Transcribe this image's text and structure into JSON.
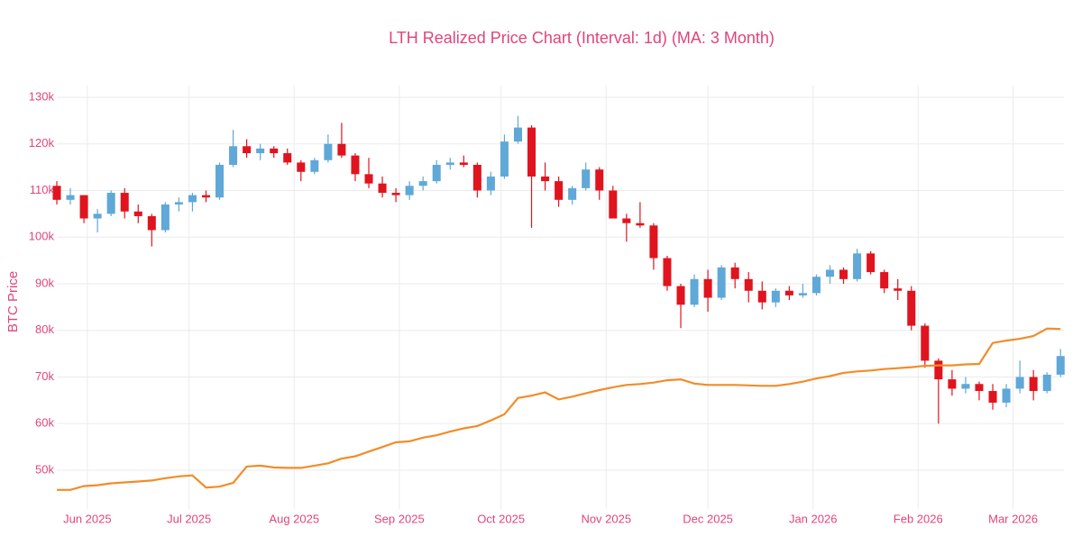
{
  "chart_data": {
    "type": "candlestick",
    "title": "LTH Realized Price Chart (Interval: 1d) (MA: 3 Month)",
    "y_label": "BTC Price",
    "up_color": "#5fa8d8",
    "down_color": "#e0141e",
    "grid": true,
    "xlim": [
      "2025-05-23",
      "2026-03-16"
    ],
    "xticks": [
      {
        "value": "2025-06-01",
        "label": "Jun 2025"
      },
      {
        "value": "2025-07-01",
        "label": "Jul 2025"
      },
      {
        "value": "2025-08-01",
        "label": "Aug 2025"
      },
      {
        "value": "2025-09-01",
        "label": "Sep 2025"
      },
      {
        "value": "2025-10-01",
        "label": "Oct 2025"
      },
      {
        "value": "2025-11-01",
        "label": "Nov 2025"
      },
      {
        "value": "2025-12-01",
        "label": "Dec 2025"
      },
      {
        "value": "2026-01-01",
        "label": "Jan 2026"
      },
      {
        "value": "2026-02-01",
        "label": "Feb 2026"
      },
      {
        "value": "2026-03-01",
        "label": "Mar 2026"
      }
    ],
    "ylim": [
      41700,
      132500
    ],
    "yticks": [
      {
        "value": 50000,
        "label": "50k"
      },
      {
        "value": 60000,
        "label": "60k"
      },
      {
        "value": 70000,
        "label": "70k"
      },
      {
        "value": 80000,
        "label": "80k"
      },
      {
        "value": 90000,
        "label": "90k"
      },
      {
        "value": 100000,
        "label": "100k"
      },
      {
        "value": 110000,
        "label": "110k"
      },
      {
        "value": 120000,
        "label": "120k"
      },
      {
        "value": 130000,
        "label": "130k"
      }
    ],
    "x": [
      "2025-05-23",
      "2025-05-27",
      "2025-05-31",
      "2025-06-04",
      "2025-06-08",
      "2025-06-12",
      "2025-06-16",
      "2025-06-20",
      "2025-06-24",
      "2025-06-28",
      "2025-07-02",
      "2025-07-06",
      "2025-07-10",
      "2025-07-14",
      "2025-07-18",
      "2025-07-22",
      "2025-07-26",
      "2025-07-30",
      "2025-08-03",
      "2025-08-07",
      "2025-08-11",
      "2025-08-15",
      "2025-08-19",
      "2025-08-23",
      "2025-08-27",
      "2025-08-31",
      "2025-09-04",
      "2025-09-08",
      "2025-09-12",
      "2025-09-16",
      "2025-09-20",
      "2025-09-24",
      "2025-09-28",
      "2025-10-02",
      "2025-10-06",
      "2025-10-10",
      "2025-10-14",
      "2025-10-18",
      "2025-10-22",
      "2025-10-26",
      "2025-10-30",
      "2025-11-03",
      "2025-11-07",
      "2025-11-11",
      "2025-11-15",
      "2025-11-19",
      "2025-11-23",
      "2025-11-27",
      "2025-12-01",
      "2025-12-05",
      "2025-12-09",
      "2025-12-13",
      "2025-12-17",
      "2025-12-21",
      "2025-12-25",
      "2025-12-29",
      "2026-01-02",
      "2026-01-06",
      "2026-01-10",
      "2026-01-14",
      "2026-01-18",
      "2026-01-22",
      "2026-01-26",
      "2026-01-30",
      "2026-02-03",
      "2026-02-07",
      "2026-02-11",
      "2026-02-15",
      "2026-02-19",
      "2026-02-23",
      "2026-02-27",
      "2026-03-03",
      "2026-03-07",
      "2026-03-11",
      "2026-03-15"
    ],
    "open": [
      111000,
      108000,
      109000,
      104000,
      105000,
      109500,
      105500,
      104500,
      101500,
      107000,
      107500,
      109000,
      108500,
      115500,
      119500,
      118000,
      119000,
      118000,
      116000,
      114000,
      116500,
      120000,
      117500,
      113500,
      111500,
      109500,
      109000,
      111000,
      112000,
      115500,
      116000,
      115500,
      110000,
      113000,
      120500,
      123500,
      113000,
      112000,
      108000,
      110500,
      114500,
      110000,
      104000,
      103000,
      102500,
      95500,
      89500,
      85500,
      91000,
      87000,
      93500,
      91000,
      88500,
      86000,
      88500,
      87500,
      88000,
      91500,
      93000,
      91000,
      96500,
      92500,
      89000,
      88500,
      81000,
      73500,
      69500,
      67500,
      68500,
      67000,
      64500,
      67500,
      70000,
      67000,
      70500
    ],
    "high": [
      112000,
      110500,
      109000,
      106000,
      110000,
      110500,
      107000,
      105000,
      107500,
      108500,
      109500,
      110000,
      116000,
      123000,
      121000,
      120000,
      119500,
      119000,
      116500,
      117000,
      122000,
      124500,
      118000,
      117000,
      113000,
      110500,
      112000,
      113000,
      116500,
      117000,
      117500,
      116000,
      114000,
      122000,
      126000,
      124000,
      116000,
      113000,
      111000,
      116000,
      115000,
      111000,
      105000,
      107500,
      103000,
      96000,
      90000,
      92000,
      93000,
      94000,
      94500,
      92500,
      90500,
      89000,
      89500,
      90000,
      92000,
      94000,
      93500,
      97500,
      97000,
      93000,
      91000,
      89500,
      81500,
      74000,
      71500,
      70000,
      69000,
      68500,
      68500,
      73500,
      71500,
      71000,
      76000
    ],
    "low": [
      107000,
      107000,
      103000,
      101000,
      104500,
      104000,
      103000,
      98000,
      101000,
      105500,
      105500,
      107500,
      108000,
      115000,
      117000,
      116500,
      117000,
      115500,
      112000,
      113500,
      116000,
      117000,
      112000,
      110500,
      108500,
      107500,
      108000,
      110000,
      111500,
      114500,
      115000,
      108500,
      109000,
      112500,
      120000,
      102000,
      110000,
      106500,
      107000,
      110000,
      108000,
      104000,
      99000,
      102000,
      93000,
      88500,
      80500,
      85000,
      84000,
      86500,
      89000,
      86000,
      84500,
      85000,
      86500,
      87000,
      87500,
      90000,
      90000,
      90500,
      92000,
      88000,
      86500,
      80000,
      72000,
      60000,
      66000,
      66500,
      65000,
      63000,
      63500,
      66500,
      65000,
      66500,
      70000
    ],
    "close": [
      108000,
      109000,
      104000,
      105000,
      109500,
      105500,
      104500,
      101500,
      107000,
      107500,
      109000,
      108500,
      115500,
      119500,
      118000,
      119000,
      118000,
      116000,
      114000,
      116500,
      120000,
      117500,
      113500,
      111500,
      109500,
      109000,
      111000,
      112000,
      115500,
      116000,
      115500,
      110000,
      113000,
      120500,
      123500,
      113000,
      112000,
      108000,
      110500,
      114500,
      110000,
      104000,
      103000,
      102500,
      95500,
      89500,
      85500,
      91000,
      87000,
      93500,
      91000,
      88500,
      86000,
      88500,
      87500,
      88000,
      91500,
      93000,
      91000,
      96500,
      92500,
      89000,
      88500,
      81000,
      73500,
      69500,
      67500,
      68500,
      67000,
      64500,
      67500,
      70000,
      67000,
      70500,
      74500
    ],
    "line": {
      "color": "#f28c28",
      "values": [
        45800,
        45800,
        46600,
        46800,
        47200,
        47400,
        47600,
        47800,
        48300,
        48700,
        48900,
        46300,
        46500,
        47300,
        50800,
        51000,
        50600,
        50500,
        50500,
        51000,
        51500,
        52500,
        53000,
        54000,
        55000,
        56000,
        56200,
        57000,
        57500,
        58300,
        59000,
        59500,
        60700,
        62000,
        65500,
        66000,
        66700,
        65200,
        65800,
        66500,
        67200,
        67800,
        68300,
        68500,
        68800,
        69300,
        69500,
        68600,
        68300,
        68300,
        68300,
        68200,
        68100,
        68100,
        68500,
        69000,
        69700,
        70200,
        70900,
        71200,
        71400,
        71700,
        71900,
        72100,
        72400,
        72500,
        72500,
        72700,
        72800,
        77300,
        77800,
        78200,
        78800,
        80400,
        80300
      ]
    }
  }
}
